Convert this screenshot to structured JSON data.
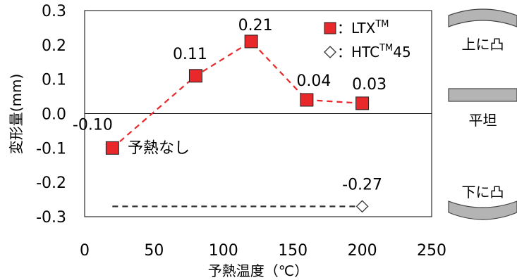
{
  "chart_data": {
    "type": "scatter",
    "xlabel": "予熱温度（℃）",
    "ylabel": "変形量(mm)",
    "xlim": [
      0,
      250
    ],
    "ylim": [
      -0.3,
      0.3
    ],
    "xticks": [
      0,
      50,
      100,
      150,
      200,
      250
    ],
    "yticks": [
      "0.3",
      "0.2",
      "0.1",
      "0.0",
      "-0.1",
      "-0.2",
      "-0.3"
    ],
    "grid": false,
    "legend_position": "top-right",
    "series": [
      {
        "name": "LTX",
        "superscript": "TM",
        "marker": "filled-square",
        "color": "#e8282b",
        "line_color": "#e8282b",
        "line_style": "dashed",
        "x": [
          20,
          80,
          120,
          160,
          200
        ],
        "y": [
          -0.1,
          0.11,
          0.21,
          0.04,
          0.03
        ],
        "labels": [
          "-0.10",
          "0.11",
          "0.21",
          "0.04",
          "0.03"
        ]
      },
      {
        "name": "HTC",
        "superscript": "TM",
        "suffix": "45",
        "marker": "open-diamond",
        "color": "#ffffff",
        "line_color": "#333333",
        "line_style": "dashed",
        "line_x": [
          20,
          200
        ],
        "line_y": [
          -0.27,
          -0.27
        ],
        "x": [
          200
        ],
        "y": [
          -0.27
        ],
        "labels": [
          "-0.27"
        ]
      }
    ],
    "legend_prefix": "：",
    "annotations": [
      {
        "text": "予熱なし",
        "x": 30,
        "y": -0.1
      }
    ],
    "side_icons": [
      {
        "label": "上に凸",
        "shape": "convex-up"
      },
      {
        "label": "平坦",
        "shape": "flat"
      },
      {
        "label": "下に凸",
        "shape": "convex-down"
      }
    ]
  }
}
